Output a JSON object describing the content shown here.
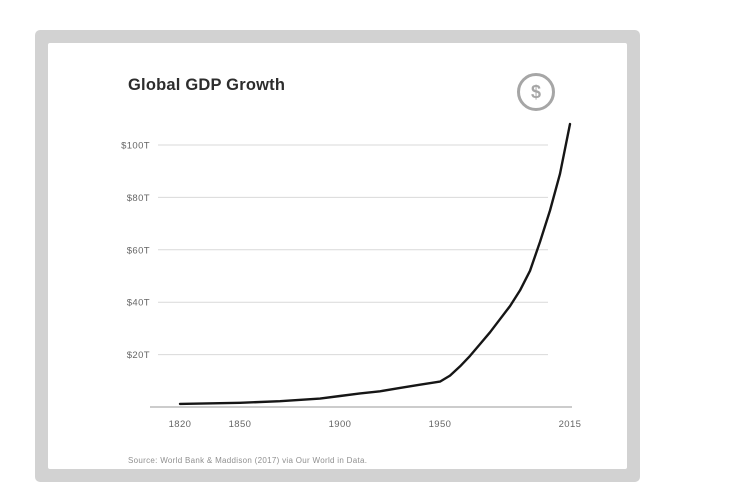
{
  "card": {
    "title": "Global GDP Growth",
    "icon_glyph": "$",
    "source": "Source: World Bank & Maddison (2017) via Our World in Data."
  },
  "colors": {
    "frame": "#d2d2d2",
    "card_background": "#ffffff",
    "line": "#161616",
    "grid": "#d9d9d9",
    "axis": "#9a9a9a",
    "icon": "#a6a6a6"
  },
  "chart_data": {
    "type": "line",
    "title": "Global GDP Growth",
    "xlabel": "",
    "ylabel": "",
    "xlim": [
      1820,
      2015
    ],
    "ylim": [
      0,
      110
    ],
    "grid": "horizontal",
    "legend": "none",
    "x": [
      1820,
      1850,
      1870,
      1890,
      1900,
      1910,
      1920,
      1930,
      1940,
      1950,
      1955,
      1960,
      1965,
      1970,
      1975,
      1980,
      1985,
      1990,
      1995,
      2000,
      2005,
      2010,
      2015
    ],
    "values": [
      1.2,
      1.6,
      2.2,
      3.2,
      4.2,
      5.2,
      6.0,
      7.3,
      8.5,
      9.7,
      12,
      15.5,
      19.5,
      24,
      28.5,
      33.5,
      38.5,
      44.5,
      52,
      63,
      75,
      89,
      108
    ],
    "y_ticks": [
      {
        "label": "$20T",
        "value": 20
      },
      {
        "label": "$40T",
        "value": 40
      },
      {
        "label": "$60T",
        "value": 60
      },
      {
        "label": "$80T",
        "value": 80
      },
      {
        "label": "$100T",
        "value": 100
      }
    ],
    "x_ticks": [
      {
        "label": "1820",
        "value": 1820
      },
      {
        "label": "1850",
        "value": 1850
      },
      {
        "label": "1900",
        "value": 1900
      },
      {
        "label": "1950",
        "value": 1950
      },
      {
        "label": "2015",
        "value": 2015
      }
    ],
    "line_color": "#161616",
    "grid_color": "#d9d9d9",
    "axis_color": "#9a9a9a"
  }
}
